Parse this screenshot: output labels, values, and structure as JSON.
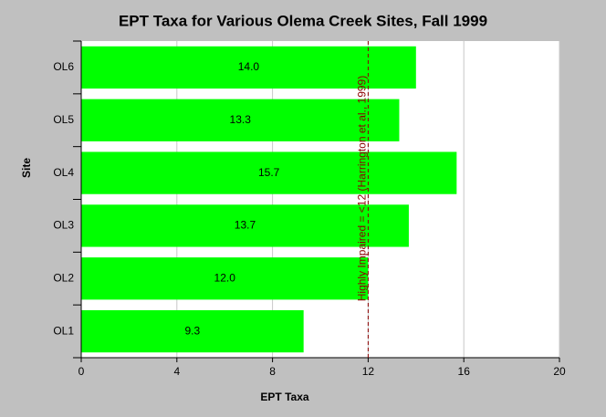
{
  "chart_data": {
    "type": "bar",
    "orientation": "horizontal",
    "title": "EPT Taxa for Various Olema Creek Sites, Fall 1999",
    "xlabel": "EPT Taxa",
    "ylabel": "Site",
    "categories": [
      "OL1",
      "OL2",
      "OL3",
      "OL4",
      "OL5",
      "OL6"
    ],
    "values": [
      9.3,
      12,
      13.7,
      15.7,
      13.3,
      14
    ],
    "value_labels": [
      "9.3",
      "12.0",
      "13.7",
      "15.7",
      "13.3",
      "14.0"
    ],
    "color": "#00ff00",
    "xlim": [
      0,
      20
    ],
    "xticks": [
      0,
      4,
      8,
      12,
      16,
      20
    ],
    "grid": true,
    "annotation": {
      "text": "Highly Impaired = <12 (Harrington et al., 1999)",
      "value": 12,
      "color": "#8b0000"
    }
  }
}
